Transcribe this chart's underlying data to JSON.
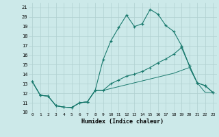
{
  "xlabel": "Humidex (Indice chaleur)",
  "background_color": "#cce9e9",
  "grid_color": "#b0d0d0",
  "line_color": "#1a7a6e",
  "xlim": [
    -0.5,
    23.5
  ],
  "ylim": [
    10,
    21.5
  ],
  "yticks": [
    10,
    11,
    12,
    13,
    14,
    15,
    16,
    17,
    18,
    19,
    20,
    21
  ],
  "xticks": [
    0,
    1,
    2,
    3,
    4,
    5,
    6,
    7,
    8,
    9,
    10,
    11,
    12,
    13,
    14,
    15,
    16,
    17,
    18,
    19,
    20,
    21,
    22,
    23
  ],
  "line1_x": [
    0,
    1,
    2,
    3,
    4,
    5,
    6,
    7,
    8,
    9,
    10,
    11,
    12,
    13,
    14,
    15,
    16,
    17,
    18,
    19,
    20,
    21,
    22,
    23
  ],
  "line1_y": [
    13.2,
    11.8,
    11.7,
    10.7,
    10.55,
    10.5,
    11.0,
    11.1,
    12.3,
    15.5,
    17.5,
    18.9,
    20.2,
    19.0,
    19.3,
    20.8,
    20.3,
    19.1,
    18.5,
    17.0,
    14.9,
    13.1,
    12.8,
    12.1
  ],
  "line2_x": [
    0,
    1,
    2,
    3,
    4,
    5,
    6,
    7,
    8,
    9,
    10,
    11,
    12,
    13,
    14,
    15,
    16,
    17,
    18,
    19,
    20,
    21,
    22,
    23
  ],
  "line2_y": [
    13.2,
    11.8,
    11.7,
    10.7,
    10.55,
    10.5,
    11.0,
    11.1,
    12.3,
    12.3,
    13.0,
    13.4,
    13.8,
    14.0,
    14.3,
    14.7,
    15.2,
    15.6,
    16.1,
    16.8,
    14.9,
    13.1,
    12.8,
    12.1
  ],
  "line3_x": [
    0,
    1,
    2,
    3,
    4,
    5,
    6,
    7,
    8,
    9,
    10,
    11,
    12,
    13,
    14,
    15,
    16,
    17,
    18,
    19,
    20,
    21,
    22,
    23
  ],
  "line3_y": [
    13.2,
    11.8,
    11.7,
    10.7,
    10.55,
    10.5,
    11.0,
    11.1,
    12.3,
    12.3,
    12.5,
    12.7,
    12.9,
    13.1,
    13.3,
    13.5,
    13.7,
    13.9,
    14.1,
    14.4,
    14.7,
    13.1,
    12.1,
    12.1
  ]
}
